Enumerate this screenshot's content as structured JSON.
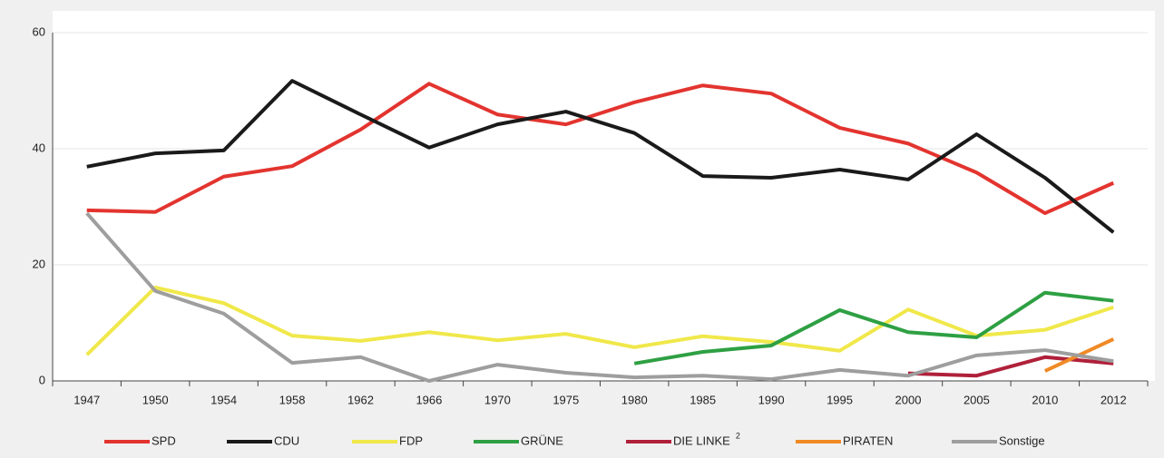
{
  "chart_data": {
    "type": "line",
    "categories": [
      "1947",
      "1950",
      "1954",
      "1958",
      "1962",
      "1966",
      "1970",
      "1975",
      "1980",
      "1985",
      "1990",
      "1995",
      "2000",
      "2005",
      "2010",
      "2012"
    ],
    "series": [
      {
        "name": "SPD",
        "color": "#e3342f",
        "values": [
          29.4,
          29.1,
          35.2,
          37.0,
          43.3,
          51.2,
          45.9,
          44.2,
          48.0,
          50.9,
          49.5,
          43.6,
          40.9,
          35.9,
          28.9,
          34.1
        ]
      },
      {
        "name": "CDU",
        "color": "#1a1a1a",
        "values": [
          36.9,
          39.2,
          39.7,
          51.7,
          45.9,
          40.2,
          44.2,
          46.4,
          42.7,
          35.3,
          35.0,
          36.4,
          34.7,
          42.5,
          35.0,
          25.6
        ]
      },
      {
        "name": "FDP",
        "color": "#f0e84a",
        "values": [
          4.5,
          16.1,
          13.4,
          7.8,
          6.9,
          8.4,
          7.0,
          8.1,
          5.8,
          7.7,
          6.7,
          5.2,
          12.3,
          7.8,
          8.8,
          12.7
        ]
      },
      {
        "name": "GRÜNE",
        "color": "#2ea043",
        "values": [
          null,
          null,
          null,
          null,
          null,
          null,
          null,
          null,
          3.0,
          5.0,
          6.1,
          12.2,
          8.4,
          7.5,
          15.2,
          13.8
        ]
      },
      {
        "name": "DIE LINKE",
        "footnote": "2",
        "color": "#b0203a",
        "values": [
          null,
          null,
          null,
          null,
          null,
          null,
          null,
          null,
          null,
          null,
          null,
          null,
          1.3,
          0.9,
          4.1,
          3.0
        ]
      },
      {
        "name": "PIRATEN",
        "color": "#f08a24",
        "values": [
          null,
          null,
          null,
          null,
          null,
          null,
          null,
          null,
          null,
          null,
          null,
          null,
          null,
          null,
          1.7,
          7.2
        ]
      },
      {
        "name": "Sonstige",
        "color": "#9e9e9e",
        "values": [
          28.9,
          15.5,
          11.6,
          3.1,
          4.1,
          0,
          2.8,
          1.4,
          0.6,
          0.9,
          0.3,
          1.9,
          0.9,
          4.4,
          5.3,
          3.4
        ]
      }
    ],
    "ylim": [
      0,
      60
    ],
    "yticks": [
      0,
      20,
      40,
      60
    ],
    "grid": true,
    "legend": "bottom"
  }
}
